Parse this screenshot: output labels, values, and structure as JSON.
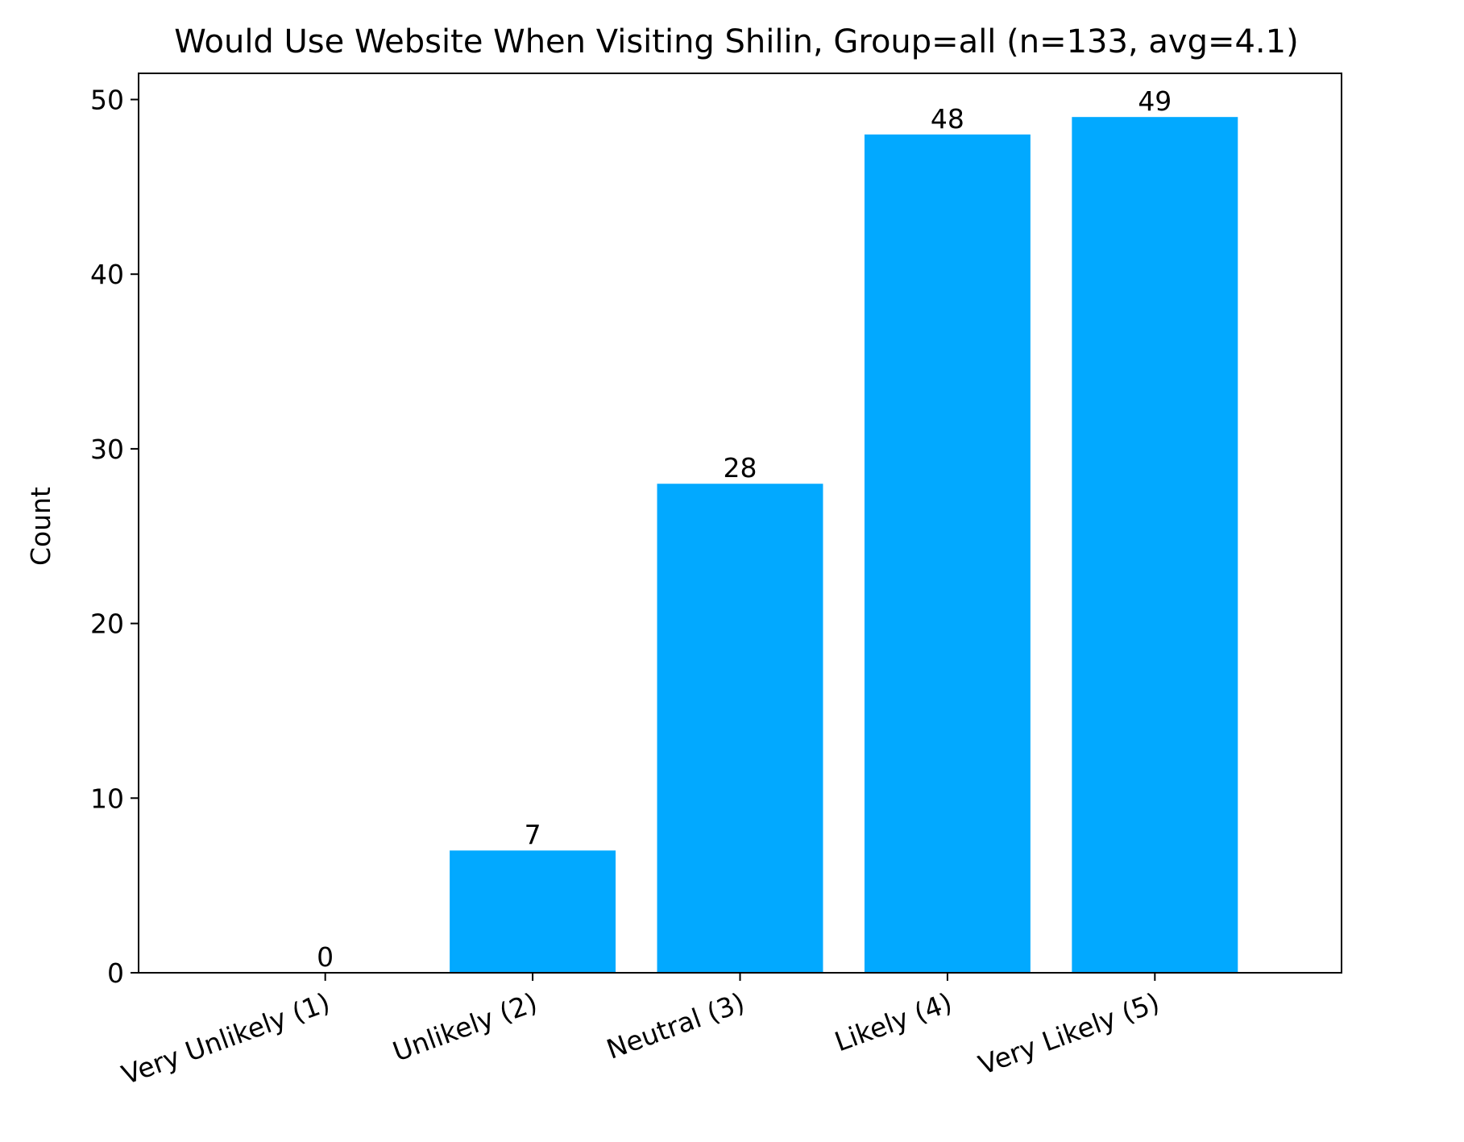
{
  "chart_data": {
    "type": "bar",
    "title": "Would Use Website When Visiting Shilin, Group=all (n=133, avg=4.1)",
    "xlabel": "",
    "ylabel": "Count",
    "categories": [
      "Very Unlikely (1)",
      "Unlikely (2)",
      "Neutral (3)",
      "Likely (4)",
      "Very Likely (5)"
    ],
    "values": [
      0,
      7,
      28,
      48,
      49
    ],
    "data_labels": [
      "0",
      "7",
      "28",
      "48",
      "49"
    ],
    "y_ticks": [
      0,
      10,
      20,
      30,
      40,
      50
    ],
    "ylim": [
      0,
      51.5
    ],
    "bar_color": "#02A9FF",
    "grid": false,
    "legend": "none",
    "x_tick_rotation_deg": 20
  }
}
